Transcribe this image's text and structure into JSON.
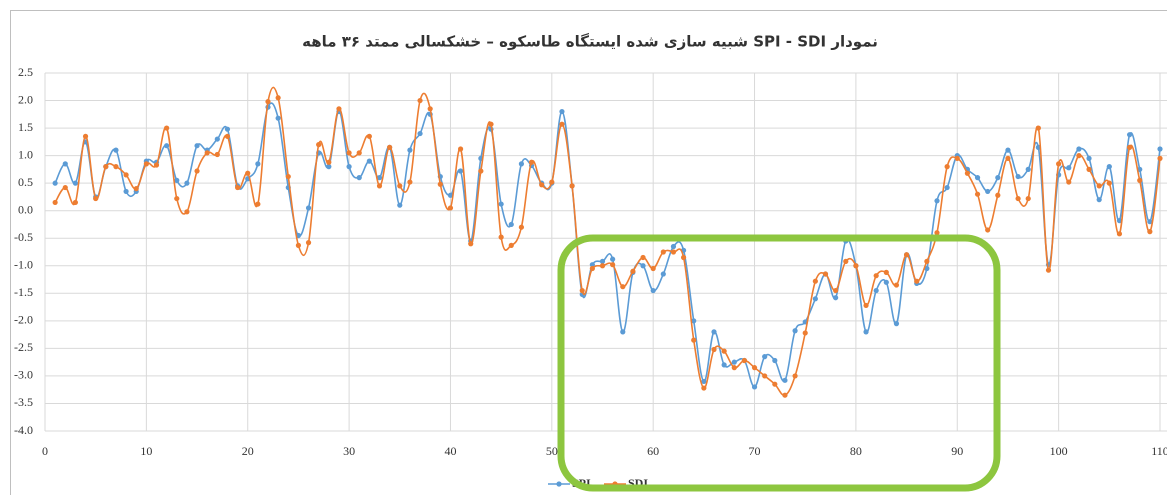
{
  "chart_data": {
    "type": "line",
    "title": "نمودار SPI - SDI شبیه سازی شده ایستگاه طاسکوه – خشکسالی ممتد ۳۶ ماهه",
    "x": [
      1,
      2,
      3,
      4,
      5,
      6,
      7,
      8,
      9,
      10,
      11,
      12,
      13,
      14,
      15,
      16,
      17,
      18,
      19,
      20,
      21,
      22,
      23,
      24,
      25,
      26,
      27,
      28,
      29,
      30,
      31,
      32,
      33,
      34,
      35,
      36,
      37,
      38,
      39,
      40,
      41,
      42,
      43,
      44,
      45,
      46,
      47,
      48,
      49,
      50,
      51,
      52,
      53,
      54,
      55,
      56,
      57,
      58,
      59,
      60,
      61,
      62,
      63,
      64,
      65,
      66,
      67,
      68,
      69,
      70,
      71,
      72,
      73,
      74,
      75,
      76,
      77,
      78,
      79,
      80,
      81,
      82,
      83,
      84,
      85,
      86,
      87,
      88,
      89,
      90,
      91,
      92,
      93,
      94,
      95,
      96,
      97,
      98,
      99,
      100,
      101,
      102,
      103,
      104,
      105,
      106,
      107,
      108,
      109,
      110
    ],
    "series": [
      {
        "name": "SPI",
        "color": "#5b9bd5",
        "values": [
          0.5,
          0.85,
          0.5,
          1.25,
          0.25,
          0.8,
          1.1,
          0.35,
          0.35,
          0.9,
          0.88,
          1.18,
          0.55,
          0.5,
          1.18,
          1.1,
          1.3,
          1.48,
          0.45,
          0.58,
          0.85,
          1.88,
          1.68,
          0.42,
          -0.45,
          0.05,
          1.05,
          0.8,
          1.8,
          0.8,
          0.6,
          0.9,
          0.6,
          1.15,
          0.1,
          1.1,
          1.4,
          1.75,
          0.62,
          0.28,
          0.72,
          -0.55,
          0.95,
          1.48,
          0.12,
          -0.25,
          0.85,
          0.82,
          0.5,
          0.5,
          1.8,
          0.45,
          -1.52,
          -0.98,
          -0.92,
          -0.88,
          -2.2,
          -1.12,
          -1.0,
          -1.45,
          -1.15,
          -0.65,
          -0.72,
          -2.0,
          -3.1,
          -2.2,
          -2.8,
          -2.75,
          -2.72,
          -3.2,
          -2.65,
          -2.72,
          -3.08,
          -2.18,
          -2.02,
          -1.6,
          -1.15,
          -1.58,
          -0.55,
          -1.0,
          -2.2,
          -1.45,
          -1.3,
          -2.05,
          -0.8,
          -1.32,
          -1.05,
          0.18,
          0.42,
          1.0,
          0.75,
          0.6,
          0.35,
          0.6,
          1.1,
          0.62,
          0.75,
          1.15,
          -0.98,
          0.65,
          0.78,
          1.12,
          0.95,
          0.2,
          0.8,
          -0.18,
          1.38,
          0.75,
          -0.2,
          1.12
        ]
      },
      {
        "name": "SDI",
        "color": "#ed7d31",
        "values": [
          0.15,
          0.42,
          0.15,
          1.35,
          0.22,
          0.8,
          0.8,
          0.65,
          0.4,
          0.85,
          0.83,
          1.5,
          0.22,
          -0.02,
          0.72,
          1.05,
          1.02,
          1.35,
          0.42,
          0.68,
          0.12,
          1.98,
          2.05,
          0.62,
          -0.63,
          -0.58,
          1.2,
          0.88,
          1.85,
          1.05,
          1.05,
          1.35,
          0.45,
          1.15,
          0.45,
          0.52,
          2.0,
          1.85,
          0.48,
          0.05,
          1.12,
          -0.6,
          0.72,
          1.57,
          -0.48,
          -0.63,
          -0.3,
          0.88,
          0.47,
          0.52,
          1.57,
          0.45,
          -1.45,
          -1.05,
          -1.0,
          -0.98,
          -1.38,
          -1.1,
          -0.85,
          -1.05,
          -0.75,
          -0.75,
          -0.85,
          -2.35,
          -3.22,
          -2.52,
          -2.55,
          -2.85,
          -2.72,
          -2.85,
          -3.0,
          -3.15,
          -3.35,
          -3.0,
          -2.22,
          -1.28,
          -1.15,
          -1.45,
          -0.92,
          -1.0,
          -1.72,
          -1.18,
          -1.12,
          -1.35,
          -0.8,
          -1.28,
          -0.92,
          -0.4,
          0.8,
          0.95,
          0.68,
          0.3,
          -0.35,
          0.28,
          0.95,
          0.22,
          0.22,
          1.5,
          -1.08,
          0.85,
          0.52,
          1.0,
          0.75,
          0.45,
          0.5,
          -0.42,
          1.15,
          0.55,
          -0.38,
          0.95
        ]
      }
    ],
    "xlim": [
      0,
      110
    ],
    "xticks": [
      0,
      10,
      20,
      30,
      40,
      50,
      60,
      70,
      80,
      90,
      100,
      110
    ],
    "ylim": [
      -4,
      2.5
    ],
    "yticks": [
      2.5,
      {
        "value": 2,
        "label": "2.0"
      },
      1.5,
      {
        "value": 1,
        "label": "1.0"
      },
      0.5,
      {
        "value": 0,
        "label": "0.0"
      },
      -0.5,
      {
        "value": -1,
        "label": "-1.0"
      },
      -1.5,
      {
        "value": -2,
        "label": "-2.0"
      },
      -2.5,
      {
        "value": -3,
        "label": "-3.0"
      },
      -3.5,
      {
        "value": -4,
        "label": "-4.0"
      }
    ],
    "grid": true,
    "legend": "bottom"
  }
}
